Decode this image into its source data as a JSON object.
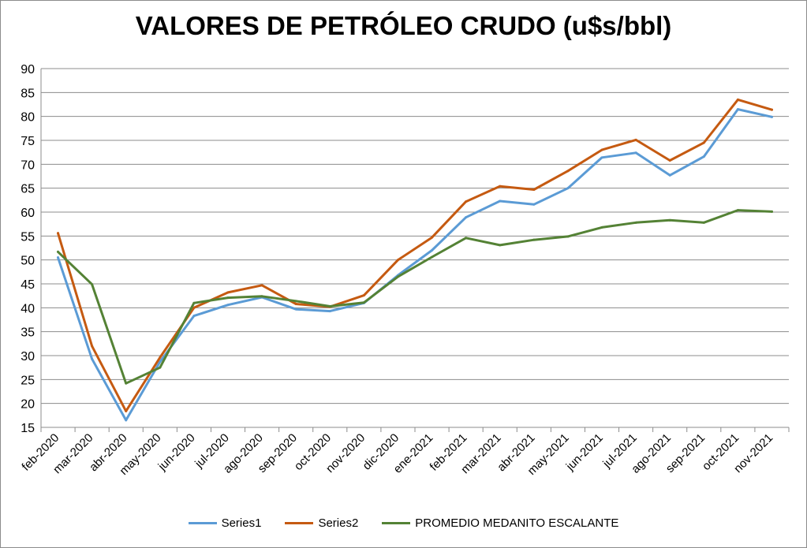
{
  "chart_data": {
    "type": "line",
    "title": "VALORES DE PETRÓLEO CRUDO (u$s/bbl)",
    "xlabel": "",
    "ylabel": "",
    "ylim": [
      15,
      90
    ],
    "y_ticks": [
      15,
      20,
      25,
      30,
      35,
      40,
      45,
      50,
      55,
      60,
      65,
      70,
      75,
      80,
      85,
      90
    ],
    "grid": true,
    "legend_position": "bottom",
    "categories": [
      "feb-2020",
      "mar-2020",
      "abr-2020",
      "may-2020",
      "jun-2020",
      "jul-2020",
      "ago-2020",
      "sep-2020",
      "oct-2020",
      "nov-2020",
      "dic-2020",
      "ene-2021",
      "feb-2021",
      "mar-2021",
      "abr-2021",
      "may-2021",
      "jun-2021",
      "jul-2021",
      "ago-2021",
      "sep-2021",
      "oct-2021",
      "nov-2021"
    ],
    "series": [
      {
        "name": "Series1",
        "color": "#5b9bd5",
        "values": [
          50.5,
          29.3,
          16.5,
          28.7,
          38.3,
          40.6,
          42.2,
          39.7,
          39.3,
          41.0,
          46.8,
          52.0,
          58.9,
          62.3,
          61.6,
          65.0,
          71.4,
          72.4,
          67.7,
          71.6,
          81.5,
          79.9
        ]
      },
      {
        "name": "Series2",
        "color": "#c55a11",
        "values": [
          55.6,
          32.0,
          18.4,
          29.6,
          40.0,
          43.2,
          44.7,
          40.8,
          40.2,
          42.6,
          50.0,
          54.7,
          62.2,
          65.4,
          64.7,
          68.6,
          73.0,
          75.1,
          70.8,
          74.5,
          83.5,
          81.4
        ]
      },
      {
        "name": "PROMEDIO MEDANITO ESCALANTE",
        "color": "#548235",
        "values": [
          51.7,
          44.9,
          24.2,
          27.5,
          41.0,
          42.1,
          42.4,
          41.4,
          40.3,
          41.1,
          46.5,
          50.6,
          54.6,
          53.1,
          54.2,
          54.9,
          56.8,
          57.8,
          58.3,
          57.8,
          60.4,
          60.1
        ]
      }
    ]
  }
}
